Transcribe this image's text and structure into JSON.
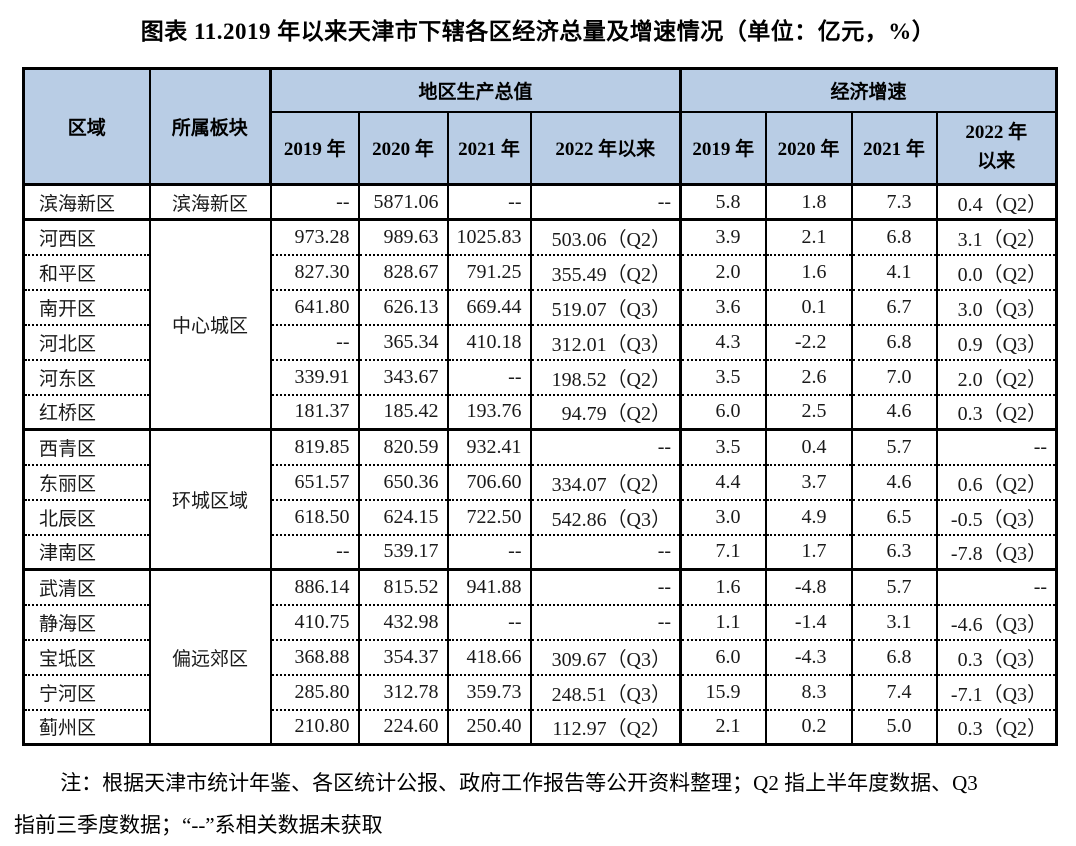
{
  "title": "图表 11.2019 年以来天津市下辖各区经济总量及增速情况（单位：亿元，%）",
  "colors": {
    "header_bg": "#B9CDE5",
    "border": "#000000",
    "text": "#1A1A1A"
  },
  "table": {
    "col_headers": {
      "region": "区域",
      "block": "所属板块",
      "gdp_group": "地区生产总值",
      "growth_group": "经济增速",
      "gdp_years": [
        "2019 年",
        "2020 年",
        "2021 年",
        "2022 年以来"
      ],
      "growth_years": [
        "2019 年",
        "2020 年",
        "2021 年",
        "2022 年以来"
      ]
    },
    "rows": [
      {
        "region": "滨海新区",
        "block": "滨海新区",
        "block_span": 1,
        "group_start": true,
        "gdp": [
          "--",
          "5871.06",
          "--",
          "--"
        ],
        "growth": [
          "5.8",
          "1.8",
          "7.3",
          "0.4（Q2）"
        ]
      },
      {
        "region": "河西区",
        "block": "中心城区",
        "block_span": 6,
        "group_start": true,
        "gdp": [
          "973.28",
          "989.63",
          "1025.83",
          "503.06（Q2）"
        ],
        "growth": [
          "3.9",
          "2.1",
          "6.8",
          "3.1（Q2）"
        ]
      },
      {
        "region": "和平区",
        "gdp": [
          "827.30",
          "828.67",
          "791.25",
          "355.49（Q2）"
        ],
        "growth": [
          "2.0",
          "1.6",
          "4.1",
          "0.0（Q2）"
        ]
      },
      {
        "region": "南开区",
        "gdp": [
          "641.80",
          "626.13",
          "669.44",
          "519.07（Q3）"
        ],
        "growth": [
          "3.6",
          "0.1",
          "6.7",
          "3.0（Q3）"
        ]
      },
      {
        "region": "河北区",
        "gdp": [
          "--",
          "365.34",
          "410.18",
          "312.01（Q3）"
        ],
        "growth": [
          "4.3",
          "-2.2",
          "6.8",
          "0.9（Q3）"
        ]
      },
      {
        "region": "河东区",
        "gdp": [
          "339.91",
          "343.67",
          "--",
          "198.52（Q2）"
        ],
        "growth": [
          "3.5",
          "2.6",
          "7.0",
          "2.0（Q2）"
        ]
      },
      {
        "region": "红桥区",
        "gdp": [
          "181.37",
          "185.42",
          "193.76",
          "94.79（Q2）"
        ],
        "growth": [
          "6.0",
          "2.5",
          "4.6",
          "0.3（Q2）"
        ]
      },
      {
        "region": "西青区",
        "block": "环城区域",
        "block_span": 4,
        "group_start": true,
        "gdp": [
          "819.85",
          "820.59",
          "932.41",
          "--"
        ],
        "growth": [
          "3.5",
          "0.4",
          "5.7",
          "--"
        ]
      },
      {
        "region": "东丽区",
        "gdp": [
          "651.57",
          "650.36",
          "706.60",
          "334.07（Q2）"
        ],
        "growth": [
          "4.4",
          "3.7",
          "4.6",
          "0.6（Q2）"
        ]
      },
      {
        "region": "北辰区",
        "gdp": [
          "618.50",
          "624.15",
          "722.50",
          "542.86（Q3）"
        ],
        "growth": [
          "3.0",
          "4.9",
          "6.5",
          "-0.5（Q3）"
        ]
      },
      {
        "region": "津南区",
        "gdp": [
          "--",
          "539.17",
          "--",
          "--"
        ],
        "growth": [
          "7.1",
          "1.7",
          "6.3",
          "-7.8（Q3）"
        ]
      },
      {
        "region": "武清区",
        "block": "偏远郊区",
        "block_span": 5,
        "group_start": true,
        "gdp": [
          "886.14",
          "815.52",
          "941.88",
          "--"
        ],
        "growth": [
          "1.6",
          "-4.8",
          "5.7",
          "--"
        ]
      },
      {
        "region": "静海区",
        "gdp": [
          "410.75",
          "432.98",
          "--",
          "--"
        ],
        "growth": [
          "1.1",
          "-1.4",
          "3.1",
          "-4.6（Q3）"
        ]
      },
      {
        "region": "宝坻区",
        "gdp": [
          "368.88",
          "354.37",
          "418.66",
          "309.67（Q3）"
        ],
        "growth": [
          "6.0",
          "-4.3",
          "6.8",
          "0.3（Q3）"
        ]
      },
      {
        "region": "宁河区",
        "gdp": [
          "285.80",
          "312.78",
          "359.73",
          "248.51（Q3）"
        ],
        "growth": [
          "15.9",
          "8.3",
          "7.4",
          "-7.1（Q3）"
        ]
      },
      {
        "region": "蓟州区",
        "gdp": [
          "210.80",
          "224.60",
          "250.40",
          "112.97（Q2）"
        ],
        "growth": [
          "2.1",
          "0.2",
          "5.0",
          "0.3（Q2）"
        ]
      }
    ]
  },
  "note": {
    "line1": "注：根据天津市统计年鉴、各区统计公报、政府工作报告等公开资料整理；Q2 指上半年度数据、Q3",
    "line2": "指前三季度数据；“--”系相关数据未获取"
  }
}
